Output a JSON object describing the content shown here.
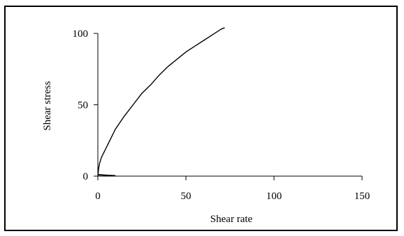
{
  "chart_data": {
    "type": "line",
    "title": "",
    "xlabel": "Shear rate",
    "ylabel": "Shear stress",
    "xlim": [
      0,
      150
    ],
    "ylim": [
      0,
      100
    ],
    "xticks": [
      0,
      50,
      100,
      150
    ],
    "yticks": [
      0,
      50,
      100
    ],
    "grid": false,
    "colors": {
      "line": "#000000",
      "axis": "#000000"
    },
    "series": [
      {
        "values": [
          {
            "x": 0,
            "y": 0
          },
          {
            "x": 0.5,
            "y": 6
          },
          {
            "x": 1,
            "y": 9
          },
          {
            "x": 2,
            "y": 13
          },
          {
            "x": 4,
            "y": 18
          },
          {
            "x": 6,
            "y": 23
          },
          {
            "x": 8,
            "y": 28
          },
          {
            "x": 10,
            "y": 33
          },
          {
            "x": 15,
            "y": 42
          },
          {
            "x": 20,
            "y": 50
          },
          {
            "x": 25,
            "y": 58
          },
          {
            "x": 30,
            "y": 64
          },
          {
            "x": 35,
            "y": 71
          },
          {
            "x": 40,
            "y": 77
          },
          {
            "x": 45,
            "y": 82
          },
          {
            "x": 50,
            "y": 87
          },
          {
            "x": 55,
            "y": 91
          },
          {
            "x": 60,
            "y": 95
          },
          {
            "x": 65,
            "y": 99
          },
          {
            "x": 70,
            "y": 103
          },
          {
            "x": 72,
            "y": 104
          }
        ]
      },
      {
        "values": [
          {
            "x": 0,
            "y": 1
          },
          {
            "x": 5,
            "y": 0.6
          },
          {
            "x": 10,
            "y": 0.3
          }
        ]
      }
    ]
  }
}
